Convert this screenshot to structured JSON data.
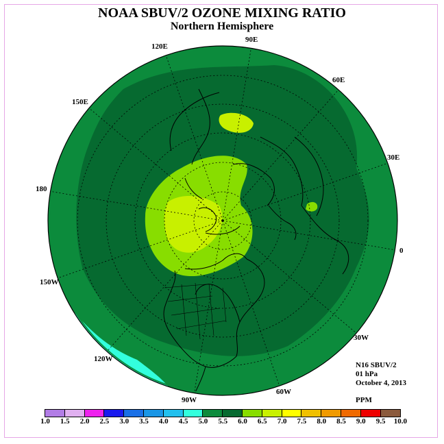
{
  "title": "NOAA SBUV/2 OZONE MIXING RATIO",
  "subtitle": "Northern Hemisphere",
  "longitude_labels": [
    "90E",
    "60E",
    "30E",
    "0",
    "30W",
    "60W",
    "90W",
    "120W",
    "150W",
    "180",
    "150E",
    "120E"
  ],
  "info": {
    "instrument": "N16 SBUV/2",
    "pressure": "01 hPa",
    "date": "October 4, 2013",
    "unit": "PPM"
  },
  "colorbar": {
    "labels": [
      "1.0",
      "1.5",
      "2.0",
      "2.5",
      "3.0",
      "3.5",
      "4.0",
      "4.5",
      "5.0",
      "5.5",
      "6.0",
      "6.5",
      "7.0",
      "7.5",
      "8.0",
      "8.5",
      "9.0",
      "9.5",
      "10.0"
    ],
    "colors": [
      "#b27de6",
      "#e0b0f0",
      "#ee22ee",
      "#1a1aee",
      "#1a70e6",
      "#1a96e6",
      "#22c0ee",
      "#33ffdd",
      "#0c8b3c",
      "#066a30",
      "#88dd00",
      "#c8f000",
      "#ffff00",
      "#f0c000",
      "#f09a00",
      "#f06a00",
      "#ee0000",
      "#8b5a3c"
    ]
  },
  "map_colors": {
    "outer": "#0c8b3c",
    "mid": "#066a30",
    "inner": "#88dd00",
    "core": "#c8f000",
    "cyan": "#33ffdd"
  }
}
